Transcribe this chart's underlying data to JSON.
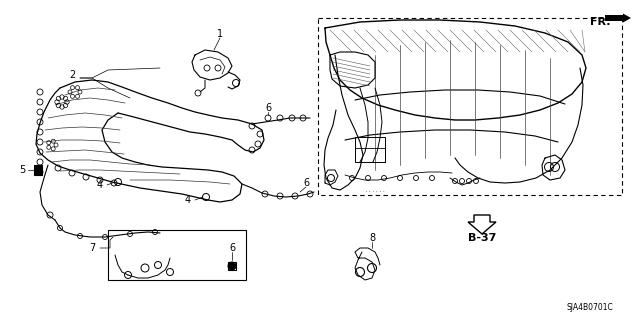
{
  "bg_color": "#ffffff",
  "line_color": "#000000",
  "fig_width": 6.4,
  "fig_height": 3.19,
  "dpi": 100,
  "fr_label": "FR.",
  "b37_label": "B-37",
  "catalog_code": "SJA4B0701C"
}
